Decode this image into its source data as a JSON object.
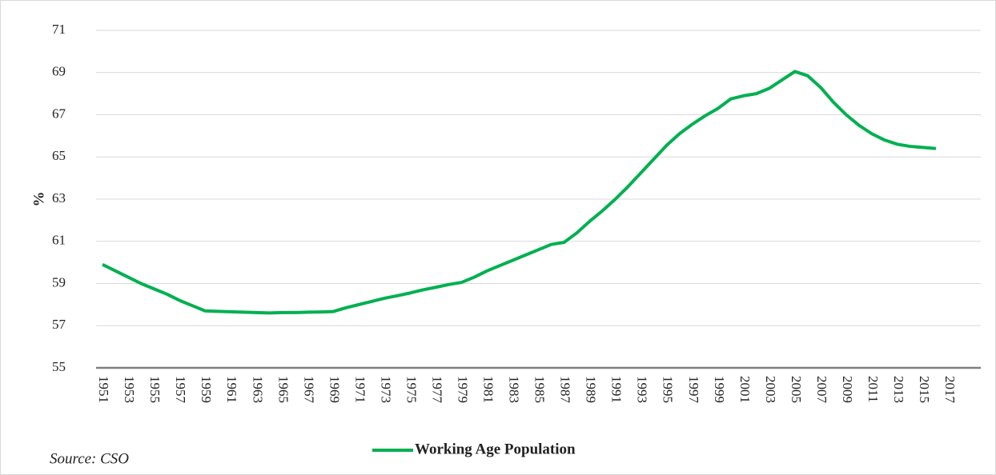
{
  "chart_data": {
    "type": "line",
    "y_label": "%",
    "source": "Source: CSO",
    "categories": [
      "1951",
      null,
      "1953",
      null,
      "1955",
      null,
      "1957",
      null,
      "1959",
      null,
      "1961",
      null,
      "1963",
      null,
      "1965",
      null,
      "1967",
      null,
      "1969",
      null,
      "1971",
      null,
      "1973",
      null,
      "1975",
      null,
      "1977",
      null,
      "1979",
      null,
      "1981",
      null,
      "1983",
      null,
      "1985",
      null,
      "1987",
      null,
      "1989",
      null,
      "1991",
      null,
      "1993",
      null,
      "1995",
      null,
      "1997",
      null,
      "1999",
      null,
      "2001",
      null,
      "2003",
      null,
      "2005",
      null,
      "2007",
      null,
      "2009",
      null,
      "2011",
      null,
      "2013",
      null,
      "2015",
      null,
      "2017"
    ],
    "series": [
      {
        "name": "Working Age Population",
        "color": "#00b050",
        "values": [
          59.9,
          59.6,
          59.3,
          59.0,
          58.75,
          58.5,
          58.2,
          57.95,
          57.7,
          57.68,
          57.66,
          57.64,
          57.62,
          57.6,
          57.62,
          57.62,
          57.64,
          57.65,
          57.67,
          57.85,
          58.0,
          58.15,
          58.3,
          58.42,
          58.55,
          58.7,
          58.82,
          58.95,
          59.05,
          59.3,
          59.6,
          59.85,
          60.1,
          60.35,
          60.6,
          60.85,
          60.95,
          61.4,
          61.95,
          62.45,
          63.0,
          63.6,
          64.25,
          64.9,
          65.55,
          66.1,
          66.55,
          66.95,
          67.3,
          67.75,
          67.9,
          68.0,
          68.25,
          68.65,
          69.05,
          68.85,
          68.3,
          67.6,
          67.0,
          66.5,
          66.1,
          65.8,
          65.6,
          65.5,
          65.45,
          65.4,
          null
        ]
      }
    ],
    "ylim": [
      55,
      71
    ],
    "yticks": [
      55,
      57,
      59,
      61,
      63,
      65,
      67,
      69,
      71
    ],
    "grid": true
  }
}
